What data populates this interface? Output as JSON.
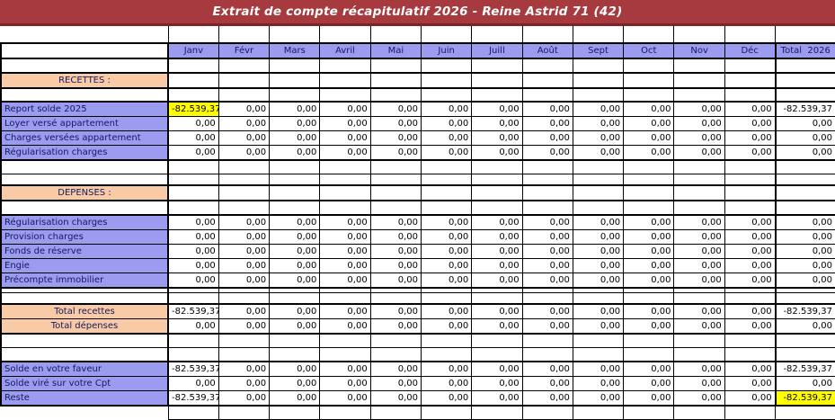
{
  "window": {
    "title": "Extrait de compte récapitulatif 2026 - Reine Astrid 71 (42)"
  },
  "colors": {
    "banner": "#A63A3E",
    "banner_border": "#7D2326",
    "header_bg": "#9B9CEF",
    "label_purple": "#9B9CEF",
    "label_peach": "#F8CBA6",
    "highlight_yellow": "#FFFF00",
    "label_text": "#171760",
    "grid_line": "#000000"
  },
  "table": {
    "month_headers": [
      "Janv",
      "Févr",
      "Mars",
      "Avril",
      "Mai",
      "Juin",
      "Juill",
      "Août",
      "Sept",
      "Oct",
      "Nov",
      "Déc"
    ],
    "total_header": "Total  2026",
    "rows": [
      {
        "kind": "top_spacer"
      },
      {
        "kind": "header"
      },
      {
        "kind": "blank"
      },
      {
        "kind": "section",
        "label": "RECETTES :"
      },
      {
        "kind": "blank"
      },
      {
        "kind": "data",
        "label": "Report solde 2025",
        "label_style": "purple",
        "group": "start",
        "highlight_first": true,
        "values": [
          "-82.539,37",
          "0,00",
          "0,00",
          "0,00",
          "0,00",
          "0,00",
          "0,00",
          "0,00",
          "0,00",
          "0,00",
          "0,00",
          "0,00"
        ],
        "total": "-82.539,37"
      },
      {
        "kind": "data",
        "label": "Loyer versé appartement",
        "label_style": "purple",
        "values": [
          "0,00",
          "0,00",
          "0,00",
          "0,00",
          "0,00",
          "0,00",
          "0,00",
          "0,00",
          "0,00",
          "0,00",
          "0,00",
          "0,00"
        ],
        "total": "0,00"
      },
      {
        "kind": "data",
        "label": "Charges versées appartement",
        "label_style": "purple",
        "values": [
          "0,00",
          "0,00",
          "0,00",
          "0,00",
          "0,00",
          "0,00",
          "0,00",
          "0,00",
          "0,00",
          "0,00",
          "0,00",
          "0,00"
        ],
        "total": "0,00"
      },
      {
        "kind": "data",
        "label": "Régularisation charges",
        "label_style": "purple",
        "group": "end",
        "values": [
          "0,00",
          "0,00",
          "0,00",
          "0,00",
          "0,00",
          "0,00",
          "0,00",
          "0,00",
          "0,00",
          "0,00",
          "0,00",
          "0,00"
        ],
        "total": "0,00"
      },
      {
        "kind": "blank"
      },
      {
        "kind": "blank_short"
      },
      {
        "kind": "section",
        "label": "DEPENSES :"
      },
      {
        "kind": "blank"
      },
      {
        "kind": "data",
        "label": "Régularisation charges",
        "label_style": "purple",
        "group": "start",
        "values": [
          "0,00",
          "0,00",
          "0,00",
          "0,00",
          "0,00",
          "0,00",
          "0,00",
          "0,00",
          "0,00",
          "0,00",
          "0,00",
          "0,00"
        ],
        "total": "0,00"
      },
      {
        "kind": "data",
        "label": "Provision charges",
        "label_style": "purple",
        "values": [
          "0,00",
          "0,00",
          "0,00",
          "0,00",
          "0,00",
          "0,00",
          "0,00",
          "0,00",
          "0,00",
          "0,00",
          "0,00",
          "0,00"
        ],
        "total": "0,00"
      },
      {
        "kind": "data",
        "label": "Fonds de réserve",
        "label_style": "purple",
        "values": [
          "0,00",
          "0,00",
          "0,00",
          "0,00",
          "0,00",
          "0,00",
          "0,00",
          "0,00",
          "0,00",
          "0,00",
          "0,00",
          "0,00"
        ],
        "total": "0,00"
      },
      {
        "kind": "data",
        "label": "Engie",
        "label_style": "purple",
        "values": [
          "0,00",
          "0,00",
          "0,00",
          "0,00",
          "0,00",
          "0,00",
          "0,00",
          "0,00",
          "0,00",
          "0,00",
          "0,00",
          "0,00"
        ],
        "total": "0,00"
      },
      {
        "kind": "data",
        "label": "Précompte immobilier",
        "label_style": "purple",
        "group": "end",
        "values": [
          "0,00",
          "0,00",
          "0,00",
          "0,00",
          "0,00",
          "0,00",
          "0,00",
          "0,00",
          "0,00",
          "0,00",
          "0,00",
          "0,00"
        ],
        "total": "0,00"
      },
      {
        "kind": "blank_tiny"
      },
      {
        "kind": "blank_short"
      },
      {
        "kind": "data",
        "label": "Total recettes",
        "label_style": "peach",
        "group": "start",
        "values": [
          "-82.539,37",
          "0,00",
          "0,00",
          "0,00",
          "0,00",
          "0,00",
          "0,00",
          "0,00",
          "0,00",
          "0,00",
          "0,00",
          "0,00"
        ],
        "total": "-82.539,37"
      },
      {
        "kind": "data",
        "label": "Total dépenses",
        "label_style": "peach",
        "group": "end",
        "values": [
          "0,00",
          "0,00",
          "0,00",
          "0,00",
          "0,00",
          "0,00",
          "0,00",
          "0,00",
          "0,00",
          "0,00",
          "0,00",
          "0,00"
        ],
        "total": "0,00"
      },
      {
        "kind": "blank"
      },
      {
        "kind": "blank"
      },
      {
        "kind": "data",
        "label": "Solde en votre faveur",
        "label_style": "purple",
        "group": "start",
        "values": [
          "-82.539,37",
          "0,00",
          "0,00",
          "0,00",
          "0,00",
          "0,00",
          "0,00",
          "0,00",
          "0,00",
          "0,00",
          "0,00",
          "0,00"
        ],
        "total": "-82.539,37"
      },
      {
        "kind": "data",
        "label": "Solde viré sur votre Cpt",
        "label_style": "purple",
        "values": [
          "0,00",
          "0,00",
          "0,00",
          "0,00",
          "0,00",
          "0,00",
          "0,00",
          "0,00",
          "0,00",
          "0,00",
          "0,00",
          "0,00"
        ],
        "total": "0,00"
      },
      {
        "kind": "data",
        "label": "Reste",
        "label_style": "purple",
        "group": "end",
        "highlight_total": true,
        "values": [
          "-82.539,37",
          "0,00",
          "0,00",
          "0,00",
          "0,00",
          "0,00",
          "0,00",
          "0,00",
          "0,00",
          "0,00",
          "0,00",
          "0,00"
        ],
        "total": "-82.539,37"
      },
      {
        "kind": "bottom_spacer"
      }
    ]
  }
}
